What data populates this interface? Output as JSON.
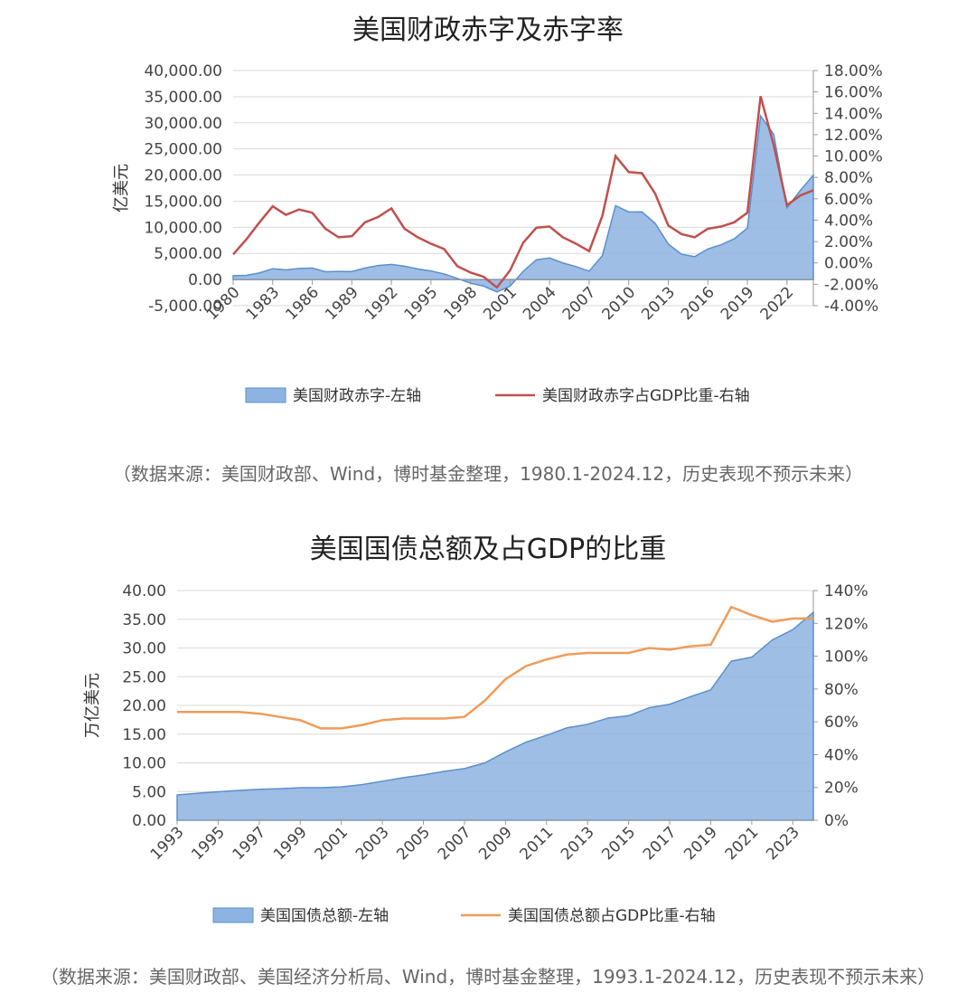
{
  "chart_data": [
    {
      "type": "area+line",
      "title": "美国财政赤字及赤字率",
      "ylabel": "亿美元",
      "ylim": [
        -5000,
        40000
      ],
      "y_ticks": [
        -5000,
        0,
        5000,
        10000,
        15000,
        20000,
        25000,
        30000,
        35000,
        40000
      ],
      "y_tick_labels": [
        "-5,000.00",
        "0.00",
        "5,000.00",
        "10,000.00",
        "15,000.00",
        "20,000.00",
        "25,000.00",
        "30,000.00",
        "35,000.00",
        "40,000.00"
      ],
      "y2lim": [
        -4,
        18
      ],
      "y2_ticks": [
        -4,
        -2,
        0,
        2,
        4,
        6,
        8,
        10,
        12,
        14,
        16,
        18
      ],
      "y2_tick_labels": [
        "-4.00%",
        "-2.00%",
        "0.00%",
        "2.00%",
        "4.00%",
        "6.00%",
        "8.00%",
        "10.00%",
        "12.00%",
        "14.00%",
        "16.00%",
        "18.00%"
      ],
      "x_tick_labels": [
        "1980",
        "1983",
        "1986",
        "1989",
        "1992",
        "1995",
        "1998",
        "2001",
        "2004",
        "2007",
        "2010",
        "2013",
        "2016",
        "2019",
        "2022"
      ],
      "x": [
        1980,
        1981,
        1982,
        1983,
        1984,
        1985,
        1986,
        1987,
        1988,
        1989,
        1990,
        1991,
        1992,
        1993,
        1994,
        1995,
        1996,
        1997,
        1998,
        1999,
        2000,
        2001,
        2002,
        2003,
        2004,
        2005,
        2006,
        2007,
        2008,
        2009,
        2010,
        2011,
        2012,
        2013,
        2014,
        2015,
        2016,
        2017,
        2018,
        2019,
        2020,
        2021,
        2022,
        2023,
        2024
      ],
      "grid": true,
      "legend": "bottom",
      "series": [
        {
          "name": "美国财政赤字-左轴",
          "type": "area",
          "axis": "left",
          "color": "#8db3e2",
          "values": [
            737,
            790,
            1280,
            2080,
            1850,
            2120,
            2210,
            1500,
            1550,
            1530,
            2210,
            2690,
            2900,
            2550,
            2030,
            1640,
            1070,
            220,
            -690,
            -1260,
            -2360,
            -1280,
            1580,
            3780,
            4130,
            3180,
            2480,
            1610,
            4590,
            14130,
            12940,
            12950,
            10770,
            6800,
            4850,
            4380,
            5850,
            6650,
            7790,
            9840,
            31320,
            27750,
            13750,
            17000,
            20000
          ]
        },
        {
          "name": "美国财政赤字占GDP比重-右轴",
          "type": "line",
          "axis": "right",
          "color": "#c0504d",
          "values": [
            0.8,
            2.2,
            3.8,
            5.3,
            4.5,
            5.0,
            4.7,
            3.2,
            2.4,
            2.5,
            3.8,
            4.3,
            5.1,
            3.2,
            2.4,
            1.8,
            1.3,
            -0.3,
            -0.9,
            -1.3,
            -2.3,
            -0.7,
            1.9,
            3.3,
            3.4,
            2.4,
            1.8,
            1.1,
            4.4,
            10.0,
            8.5,
            8.4,
            6.5,
            3.5,
            2.7,
            2.4,
            3.2,
            3.4,
            3.8,
            4.7,
            15.6,
            11.0,
            5.4,
            6.3,
            6.8
          ]
        }
      ],
      "legend_labels": [
        "美国财政赤字-左轴",
        "美国财政赤字占GDP比重-右轴"
      ]
    },
    {
      "type": "area+line",
      "title": "美国国债总额及占GDP的比重",
      "ylabel": "万亿美元",
      "ylim": [
        0,
        40
      ],
      "y_ticks": [
        0,
        5,
        10,
        15,
        20,
        25,
        30,
        35,
        40
      ],
      "y_tick_labels": [
        "0.00",
        "5.00",
        "10.00",
        "15.00",
        "20.00",
        "25.00",
        "30.00",
        "35.00",
        "40.00"
      ],
      "y2lim": [
        0,
        140
      ],
      "y2_ticks": [
        0,
        20,
        40,
        60,
        80,
        100,
        120,
        140
      ],
      "y2_tick_labels": [
        "0%",
        "20%",
        "40%",
        "60%",
        "80%",
        "100%",
        "120%",
        "140%"
      ],
      "x_tick_labels": [
        "1993",
        "1995",
        "1997",
        "1999",
        "2001",
        "2003",
        "2005",
        "2007",
        "2009",
        "2011",
        "2013",
        "2015",
        "2017",
        "2019",
        "2021",
        "2023"
      ],
      "x": [
        1993,
        1994,
        1995,
        1996,
        1997,
        1998,
        1999,
        2000,
        2001,
        2002,
        2003,
        2004,
        2005,
        2006,
        2007,
        2008,
        2009,
        2010,
        2011,
        2012,
        2013,
        2014,
        2015,
        2016,
        2017,
        2018,
        2019,
        2020,
        2021,
        2022,
        2023,
        2024
      ],
      "grid": true,
      "legend": "bottom",
      "series": [
        {
          "name": "美国国债总额-左轴",
          "type": "area",
          "axis": "left",
          "color": "#8db3e2",
          "values": [
            4.4,
            4.7,
            4.97,
            5.2,
            5.4,
            5.5,
            5.66,
            5.67,
            5.8,
            6.2,
            6.8,
            7.4,
            7.9,
            8.5,
            9.0,
            10.0,
            11.9,
            13.6,
            14.8,
            16.1,
            16.7,
            17.8,
            18.2,
            19.6,
            20.2,
            21.5,
            22.7,
            27.7,
            28.4,
            31.4,
            33.2,
            36.2
          ]
        },
        {
          "name": "美国国债总额占GDP比重-右轴",
          "type": "line",
          "axis": "right",
          "color": "#f09b59",
          "values": [
            66,
            66,
            66,
            66,
            65,
            63,
            61,
            56,
            56,
            58,
            61,
            62,
            62,
            62,
            63,
            73,
            86,
            94,
            98,
            101,
            102,
            102,
            102,
            105,
            104,
            106,
            107,
            130,
            125,
            121,
            123,
            123
          ]
        }
      ],
      "legend_labels": [
        "美国国债总额-左轴",
        "美国国债总额占GDP比重-右轴"
      ]
    }
  ],
  "sources": [
    "（数据来源：美国财政部、Wind，博时基金整理，1980.1-2024.12，历史表现不预示未来）",
    "（数据来源：美国财政部、美国经济分析局、Wind，博时基金整理，1993.1-2024.12，历史表现不预示未来）"
  ]
}
